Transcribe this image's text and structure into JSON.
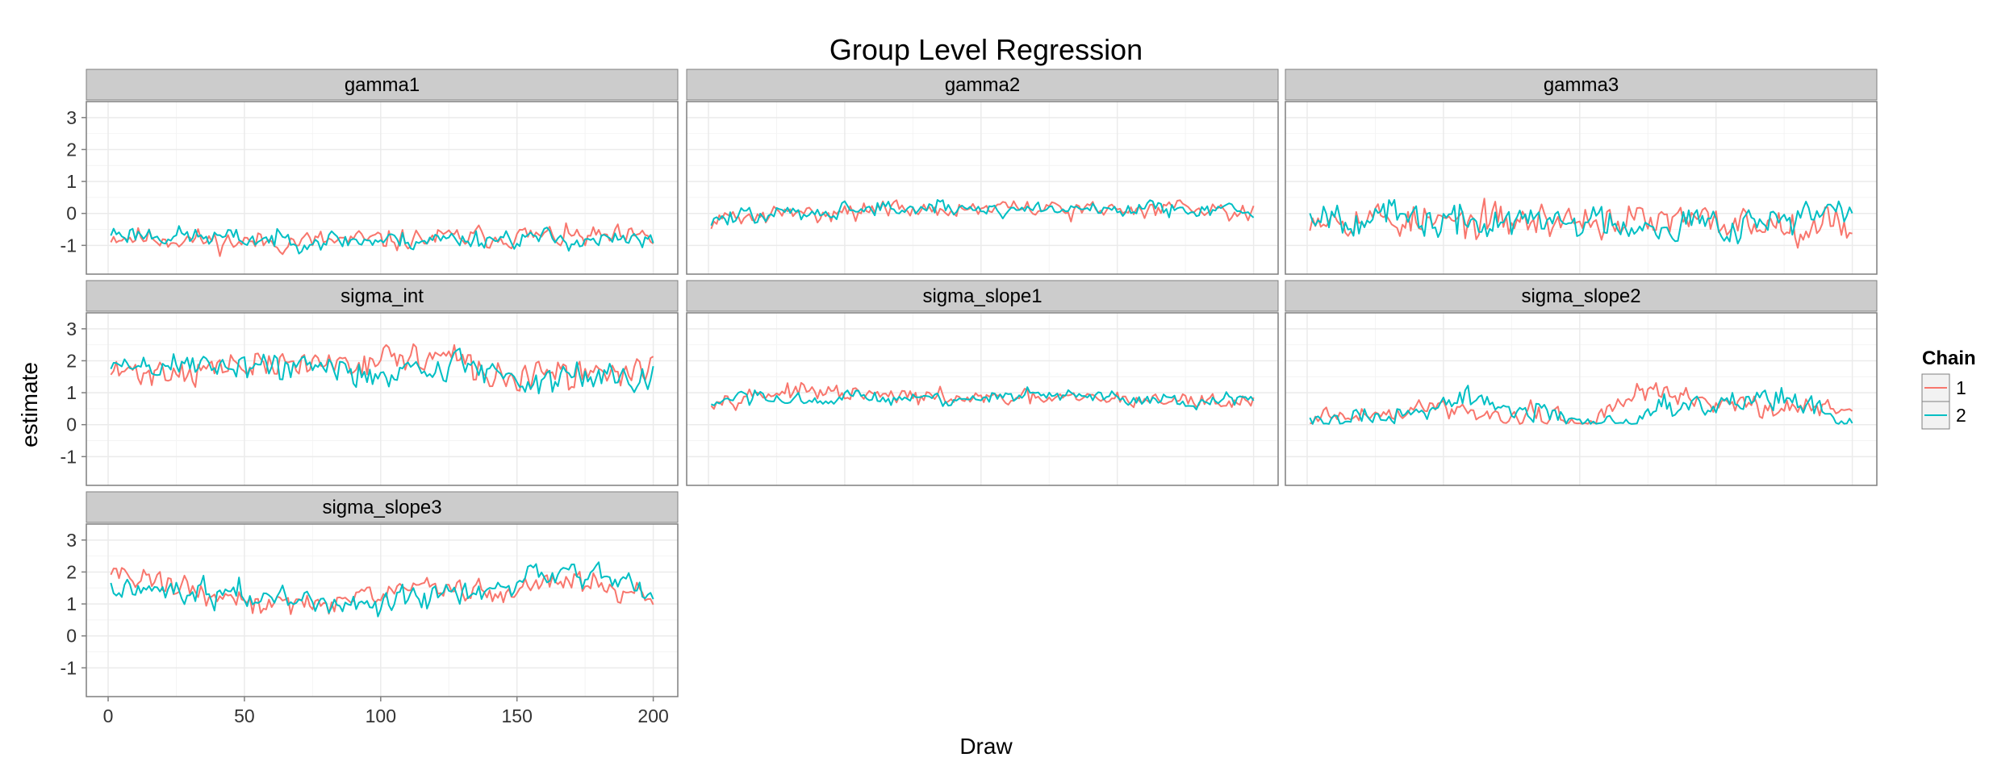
{
  "chart_data": {
    "type": "line",
    "title": "Group Level Regression",
    "xlabel": "Draw",
    "ylabel": "estimate",
    "xlim": [
      -8,
      209
    ],
    "ylim": [
      -1.9,
      3.5
    ],
    "x_ticks": [
      0,
      50,
      100,
      150,
      200
    ],
    "x_tick_labels": [
      "0",
      "50",
      "100",
      "150",
      "200"
    ],
    "y_ticks": [
      -1,
      0,
      1,
      2,
      3
    ],
    "y_tick_labels": [
      "-1",
      "0",
      "1",
      "2",
      "3"
    ],
    "grid": true,
    "legend": {
      "title": "Chain",
      "placement": "right",
      "entries": [
        {
          "label": "1",
          "color": "#F8766D"
        },
        {
          "label": "2",
          "color": "#00BFC4"
        }
      ]
    },
    "colors": {
      "panel_bg": "#ffffff",
      "panel_border": "#7f7f7f",
      "strip_bg": "#cccccc",
      "grid": "#ebebeb"
    },
    "draws": 200,
    "panels": [
      {
        "name": "gamma1",
        "series": [
          {
            "chain": "1",
            "center": [
              [
                1,
                -0.7
              ],
              [
                50,
                -0.9
              ],
              [
                100,
                -0.85
              ],
              [
                150,
                -0.7
              ],
              [
                200,
                -0.8
              ]
            ],
            "noise": 0.28,
            "seed": 11
          },
          {
            "chain": "2",
            "center": [
              [
                1,
                -0.6
              ],
              [
                50,
                -0.8
              ],
              [
                100,
                -0.85
              ],
              [
                150,
                -0.75
              ],
              [
                200,
                -0.9
              ]
            ],
            "noise": 0.25,
            "seed": 23
          }
        ]
      },
      {
        "name": "gamma2",
        "series": [
          {
            "chain": "1",
            "center": [
              [
                1,
                -0.2
              ],
              [
                50,
                0.1
              ],
              [
                100,
                0.15
              ],
              [
                150,
                0.1
              ],
              [
                180,
                0.25
              ],
              [
                200,
                0.0
              ]
            ],
            "noise": 0.22,
            "seed": 31
          },
          {
            "chain": "2",
            "center": [
              [
                1,
                -0.2
              ],
              [
                50,
                0.15
              ],
              [
                100,
                0.15
              ],
              [
                150,
                0.15
              ],
              [
                180,
                0.2
              ],
              [
                200,
                0.0
              ]
            ],
            "noise": 0.22,
            "seed": 47
          }
        ]
      },
      {
        "name": "gamma3",
        "series": [
          {
            "chain": "1",
            "center": [
              [
                1,
                0.0
              ],
              [
                50,
                -0.3
              ],
              [
                100,
                -0.2
              ],
              [
                150,
                -0.3
              ],
              [
                200,
                -0.3
              ]
            ],
            "noise": 0.45,
            "seed": 53
          },
          {
            "chain": "2",
            "center": [
              [
                1,
                0.1
              ],
              [
                50,
                -0.3
              ],
              [
                100,
                -0.25
              ],
              [
                150,
                -0.3
              ],
              [
                200,
                0.0
              ]
            ],
            "noise": 0.45,
            "seed": 67
          }
        ]
      },
      {
        "name": "sigma_int",
        "series": [
          {
            "chain": "1",
            "center": [
              [
                1,
                1.6
              ],
              [
                50,
                1.8
              ],
              [
                90,
                2.0
              ],
              [
                110,
                2.1
              ],
              [
                125,
                2.1
              ],
              [
                140,
                1.5
              ],
              [
                170,
                1.5
              ],
              [
                200,
                1.8
              ]
            ],
            "noise": 0.38,
            "seed": 71
          },
          {
            "chain": "2",
            "center": [
              [
                1,
                1.8
              ],
              [
                50,
                1.9
              ],
              [
                100,
                1.6
              ],
              [
                130,
                1.9
              ],
              [
                160,
                1.3
              ],
              [
                200,
                1.7
              ]
            ],
            "noise": 0.4,
            "seed": 89
          }
        ]
      },
      {
        "name": "sigma_slope1",
        "series": [
          {
            "chain": "1",
            "center": [
              [
                1,
                0.8
              ],
              [
                30,
                1.05
              ],
              [
                60,
                0.9
              ],
              [
                100,
                0.8
              ],
              [
                150,
                0.8
              ],
              [
                200,
                0.7
              ]
            ],
            "noise": 0.2,
            "seed": 97
          },
          {
            "chain": "2",
            "center": [
              [
                1,
                0.7
              ],
              [
                50,
                0.8
              ],
              [
                100,
                0.85
              ],
              [
                140,
                0.9
              ],
              [
                170,
                0.7
              ],
              [
                200,
                0.75
              ]
            ],
            "noise": 0.2,
            "seed": 103
          }
        ]
      },
      {
        "name": "sigma_slope2",
        "series": [
          {
            "chain": "1",
            "center": [
              [
                1,
                0.2
              ],
              [
                50,
                0.5
              ],
              [
                90,
                0.15
              ],
              [
                100,
                0.05
              ],
              [
                110,
                0.3
              ],
              [
                120,
                1.0
              ],
              [
                140,
                0.8
              ],
              [
                160,
                0.6
              ],
              [
                200,
                0.5
              ]
            ],
            "noise": 0.28,
            "seed": 109
          },
          {
            "chain": "2",
            "center": [
              [
                1,
                0.1
              ],
              [
                40,
                0.4
              ],
              [
                60,
                0.8
              ],
              [
                80,
                0.4
              ],
              [
                100,
                0.05
              ],
              [
                120,
                0.05
              ],
              [
                130,
                0.6
              ],
              [
                150,
                0.6
              ],
              [
                170,
                0.9
              ],
              [
                190,
                0.4
              ],
              [
                200,
                0.1
              ]
            ],
            "noise": 0.28,
            "seed": 127
          }
        ]
      },
      {
        "name": "sigma_slope3",
        "series": [
          {
            "chain": "1",
            "center": [
              [
                1,
                2.1
              ],
              [
                40,
                1.2
              ],
              [
                60,
                1.0
              ],
              [
                100,
                1.2
              ],
              [
                115,
                1.6
              ],
              [
                140,
                1.3
              ],
              [
                170,
                1.8
              ],
              [
                200,
                1.2
              ]
            ],
            "noise": 0.3,
            "seed": 131
          },
          {
            "chain": "2",
            "center": [
              [
                1,
                1.5
              ],
              [
                40,
                1.4
              ],
              [
                60,
                1.2
              ],
              [
                100,
                1.0
              ],
              [
                140,
                1.4
              ],
              [
                172,
                2.0
              ],
              [
                200,
                1.4
              ]
            ],
            "noise": 0.32,
            "seed": 149
          }
        ]
      }
    ]
  }
}
